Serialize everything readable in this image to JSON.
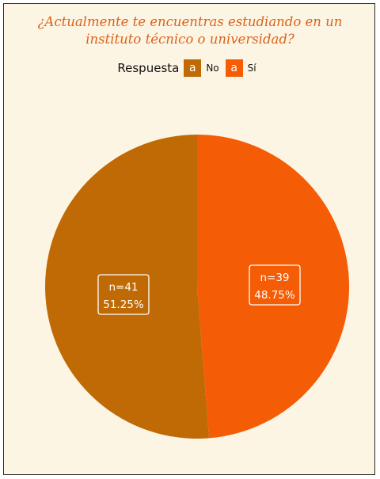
{
  "chart_data": {
    "type": "pie",
    "title": "¿Actualmente te encuentras estudiando en un instituto técnico o universidad?",
    "title_lines": [
      "¿Actualmente te encuentras estudiando en un",
      "instituto técnico o universidad?"
    ],
    "legend": {
      "title": "Respuesta",
      "placement": "top",
      "key_glyph": "a"
    },
    "slices": [
      {
        "label": "No",
        "n": 41,
        "n_text": "n=41",
        "percent_text": "51.25%",
        "value": 51.25,
        "color": "#bf6a05"
      },
      {
        "label": "Sí",
        "n": 39,
        "n_text": "n=39",
        "percent_text": "48.75%",
        "value": 48.75,
        "color": "#f45c06"
      }
    ]
  },
  "colors": {
    "background": "#fdf5e4",
    "title": "#d9631a"
  }
}
